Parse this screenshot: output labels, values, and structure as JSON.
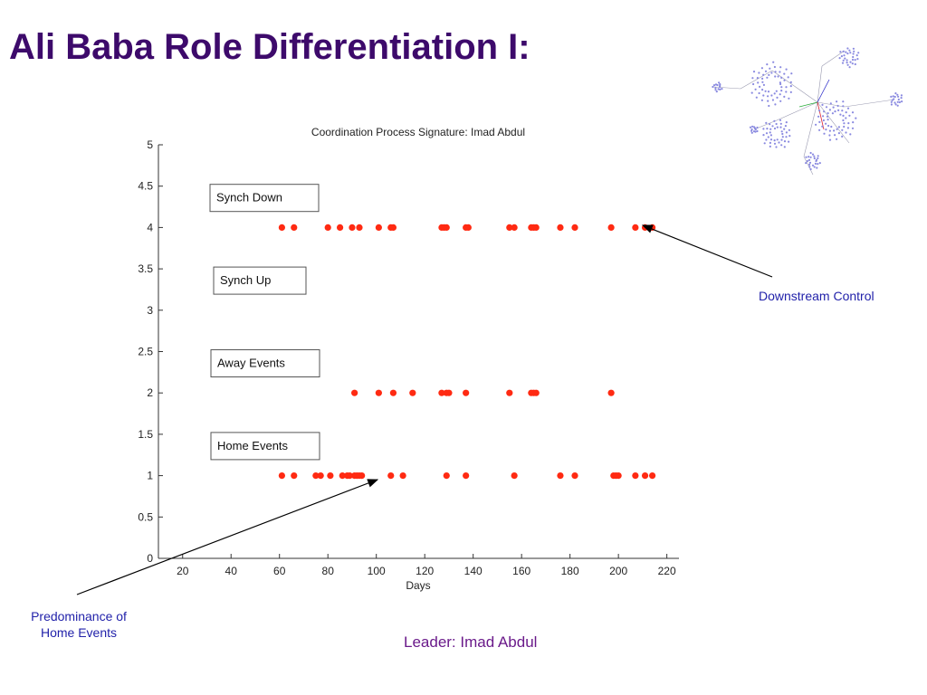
{
  "slide": {
    "title": "Ali Baba Role Differentiation I:",
    "leader_caption": "Leader: Imad Abdul"
  },
  "annotations": {
    "downstream": "Downstream Control",
    "predominance_line1": "Predominance of",
    "predominance_line2": "Home Events"
  },
  "colors": {
    "title": "#3d0a6b",
    "annotation": "#2222aa",
    "caption": "#6a1a8a",
    "points": "#ff2a12",
    "network_nodes": "#8a8ae0"
  },
  "chart_data": {
    "type": "scatter",
    "title": "Coordination Process Signature: Imad Abdul",
    "xlabel": "Days",
    "ylabel": "",
    "xlim": [
      10,
      225
    ],
    "ylim": [
      0,
      5
    ],
    "xticks": [
      20,
      40,
      60,
      80,
      100,
      120,
      140,
      160,
      180,
      200,
      220
    ],
    "yticks": [
      0,
      0.5,
      1,
      1.5,
      2,
      2.5,
      3,
      3.5,
      4,
      4.5,
      5
    ],
    "ytick_labels": [
      "0",
      "0.5",
      "1",
      "1.5",
      "2",
      "2.5",
      "3",
      "3.5",
      "4",
      "4.5",
      "5"
    ],
    "grid": false,
    "category_labels": [
      {
        "text": "Synch Down",
        "level": 4
      },
      {
        "text": "Synch Up",
        "level": 3
      },
      {
        "text": "Away  Events",
        "level": 2
      },
      {
        "text": "Home Events",
        "level": 1
      }
    ],
    "series": [
      {
        "level": 4,
        "x": [
          61,
          66,
          80,
          85,
          90,
          93,
          101,
          106,
          107,
          127,
          128,
          129,
          137,
          138,
          155,
          157,
          164,
          165,
          166,
          176,
          182,
          197,
          207,
          211,
          214
        ]
      },
      {
        "level": 2,
        "x": [
          91,
          101,
          107,
          115,
          127,
          129,
          130,
          137,
          155,
          164,
          165,
          166,
          197
        ]
      },
      {
        "level": 1,
        "x": [
          61,
          66,
          75,
          77,
          81,
          86,
          88,
          89,
          91,
          92,
          93,
          94,
          106,
          111,
          129,
          137,
          157,
          176,
          182,
          198,
          199,
          200,
          207,
          211,
          214
        ]
      }
    ]
  }
}
